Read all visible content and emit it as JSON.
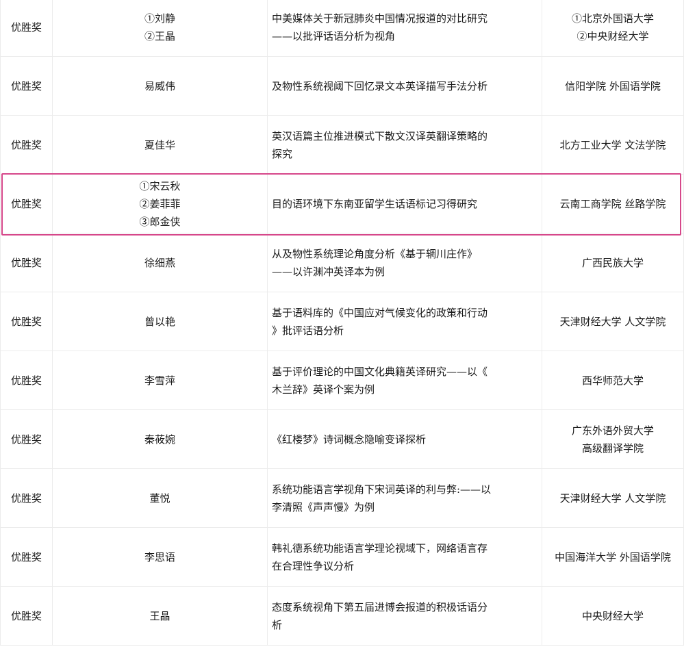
{
  "highlight_color": "#d6478a",
  "highlighted_row_index": 3,
  "rows": [
    {
      "award": "优胜奖",
      "names": [
        "①刘静",
        "②王晶"
      ],
      "title": [
        "中美媒体关于新冠肺炎中国情况报道的对比研究",
        "——以批评话语分析为视角"
      ],
      "org": [
        "①北京外国语大学",
        "②中央财经大学"
      ]
    },
    {
      "award": "优胜奖",
      "names": [
        "易威伟"
      ],
      "title": [
        "及物性系统视阈下回忆录文本英译描写手法分析"
      ],
      "org": [
        "信阳学院 外国语学院"
      ]
    },
    {
      "award": "优胜奖",
      "names": [
        "夏佳华"
      ],
      "title": [
        "英汉语篇主位推进模式下散文汉译英翻译策略的",
        "探究"
      ],
      "org": [
        "北方工业大学 文法学院"
      ]
    },
    {
      "award": "优胜奖",
      "names": [
        "①宋云秋",
        "②姜菲菲",
        "③郎金侠"
      ],
      "title": [
        "目的语环境下东南亚留学生话语标记习得研究"
      ],
      "org": [
        "云南工商学院 丝路学院"
      ]
    },
    {
      "award": "优胜奖",
      "names": [
        "徐细燕"
      ],
      "title": [
        "从及物性系统理论角度分析《基于辋川庄作》",
        "——以许渊冲英译本为例"
      ],
      "org": [
        "广西民族大学"
      ]
    },
    {
      "award": "优胜奖",
      "names": [
        "曾以艳"
      ],
      "title": [
        "基于语料库的《中国应对气候变化的政策和行动",
        "》批评话语分析"
      ],
      "org": [
        "天津财经大学 人文学院"
      ]
    },
    {
      "award": "优胜奖",
      "names": [
        "李雪萍"
      ],
      "title": [
        "基于评价理论的中国文化典籍英译研究——以《",
        "木兰辞》英译个案为例"
      ],
      "org": [
        "西华师范大学"
      ]
    },
    {
      "award": "优胜奖",
      "names": [
        "秦莜婉"
      ],
      "title": [
        "《红楼梦》诗词概念隐喻变译探析"
      ],
      "org": [
        "广东外语外贸大学",
        "高级翻译学院"
      ]
    },
    {
      "award": "优胜奖",
      "names": [
        "董悦"
      ],
      "title": [
        "系统功能语言学视角下宋词英译的利与弊:——以",
        "李清照《声声慢》为例"
      ],
      "org": [
        "天津财经大学 人文学院"
      ]
    },
    {
      "award": "优胜奖",
      "names": [
        "李思语"
      ],
      "title": [
        "韩礼德系统功能语言学理论视域下，网络语言存",
        "在合理性争议分析"
      ],
      "org": [
        "中国海洋大学 外国语学院"
      ]
    },
    {
      "award": "优胜奖",
      "names": [
        "王晶"
      ],
      "title": [
        "态度系统视角下第五届进博会报道的积极话语分",
        "析"
      ],
      "org": [
        "中央财经大学"
      ]
    }
  ]
}
